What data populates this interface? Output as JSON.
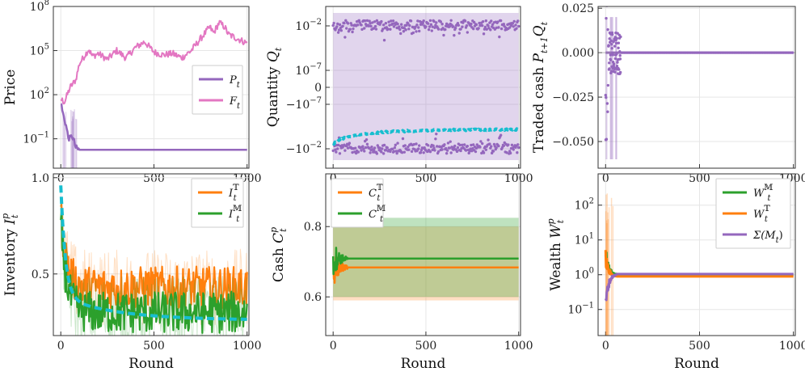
{
  "colors": {
    "purple": "#9467bd",
    "pink": "#e377c2",
    "orange": "#ff7f0e",
    "green": "#2ca02c",
    "cyan": "#17becf",
    "grid": "#e6e6e6",
    "frame": "#333333"
  },
  "chart_data": [
    {
      "id": "price",
      "type": "line",
      "ylabel": "Price",
      "yscale": "log",
      "ylim_log10": [
        -3,
        8
      ],
      "xlim": [
        -40,
        1010
      ],
      "xticks": [
        "0",
        "500",
        "1000"
      ],
      "yticks": [
        {
          "exp": 8,
          "label": "10",
          "sup": "8"
        },
        {
          "exp": 5,
          "label": "10",
          "sup": "5"
        },
        {
          "exp": 2,
          "label": "10",
          "sup": "2"
        },
        {
          "exp": -1,
          "label": "10",
          "sup": "−1"
        }
      ],
      "legend": {
        "placement": "right",
        "entries": [
          {
            "label": "P",
            "sub": "t",
            "color": "purple"
          },
          {
            "label": "F",
            "sub": "t",
            "color": "pink"
          }
        ]
      },
      "series": [
        {
          "name": "P_t",
          "color": "purple",
          "x": [
            0,
            10,
            20,
            30,
            40,
            50,
            60,
            70,
            80,
            90,
            100,
            1000
          ],
          "y_log10": [
            1.5,
            0.8,
            0.3,
            -0.2,
            -0.9,
            -1.0,
            -0.8,
            -1.1,
            -1.6,
            -1.7,
            -1.75,
            -1.75
          ]
        },
        {
          "name": "F_t",
          "color": "pink",
          "x": [
            0,
            20,
            50,
            80,
            100,
            150,
            170,
            200,
            250,
            300,
            350,
            400,
            450,
            500,
            550,
            600,
            650,
            700,
            750,
            800,
            820,
            850,
            880,
            900,
            950,
            1000
          ],
          "y_log10": [
            1.7,
            1.5,
            2.5,
            3.0,
            4.1,
            5.1,
            4.6,
            4.8,
            4.4,
            5.0,
            4.5,
            5.2,
            5.6,
            4.9,
            4.7,
            4.8,
            4.5,
            5.0,
            5.8,
            6.6,
            6.2,
            6.9,
            6.6,
            6.1,
            5.8,
            5.5
          ]
        }
      ]
    },
    {
      "id": "quantity",
      "type": "scatter",
      "ylabel": "Quantity",
      "ylabel_sym": "Q",
      "ylabel_sub": "t",
      "yscale": "symlog",
      "xlim": [
        -40,
        1010
      ],
      "xticks": [
        "0",
        "500",
        "1000"
      ],
      "yticks": [
        {
          "label": "10",
          "sup": "−2"
        },
        {
          "label": "10",
          "sup": "−7"
        },
        {
          "label": "0",
          "sup": ""
        },
        {
          "label": "−10",
          "sup": "−7"
        },
        {
          "label": "−10",
          "sup": "−2"
        }
      ],
      "series": [
        {
          "name": "positive",
          "color": "purple",
          "level": "10^-2"
        },
        {
          "name": "negative",
          "color": "purple",
          "level": "-10^-2"
        },
        {
          "name": "mean",
          "color": "cyan",
          "from": "-10^-2",
          "to": "-10^-2.5"
        }
      ]
    },
    {
      "id": "traded_cash",
      "type": "scatter",
      "ylabel": "Traded cash",
      "ylabel_sym": "P",
      "ylabel_sub": "t+1",
      "ylabel_sym2": "Q",
      "ylabel_sub2": "t",
      "ylim": [
        -0.065,
        0.026
      ],
      "xlim": [
        -40,
        1010
      ],
      "xticks": [
        "0",
        "500",
        "1000"
      ],
      "yticks": [
        "0.025",
        "0.000",
        "−0.025",
        "−0.050"
      ],
      "series": [
        {
          "name": "PQ",
          "color": "purple",
          "note": "scatter near x<80, ~0 afterwards"
        }
      ]
    },
    {
      "id": "inventory",
      "type": "line",
      "ylabel": "Inventory",
      "ylabel_sym": "I",
      "ylabel_sup": "p",
      "ylabel_sub": "t",
      "ylim": [
        0.18,
        1.02
      ],
      "xlim": [
        -40,
        1010
      ],
      "xticks": [
        "0",
        "500",
        "1000"
      ],
      "xlabel": "Round",
      "yticks": [
        "1.0",
        "0.5"
      ],
      "legend": {
        "placement": "top-right",
        "entries": [
          {
            "label": "I",
            "sub": "t",
            "sup": "𝕋",
            "color": "orange"
          },
          {
            "label": "I",
            "sub": "t",
            "sup": "𝕄",
            "color": "green"
          }
        ]
      },
      "series": [
        {
          "name": "I_t^T",
          "color": "orange",
          "start": 0.82,
          "level": 0.43
        },
        {
          "name": "I_t^M",
          "color": "green",
          "start": 0.78,
          "level": 0.3
        },
        {
          "name": "mean",
          "color": "cyan",
          "start": 0.84,
          "level": 0.26
        }
      ]
    },
    {
      "id": "cash",
      "type": "line",
      "ylabel": "Cash",
      "ylabel_sym": "C",
      "ylabel_sup": "p",
      "ylabel_sub": "t",
      "ylim": [
        0.49,
        0.95
      ],
      "xlim": [
        -40,
        1010
      ],
      "xticks": [
        "0",
        "500",
        "1000"
      ],
      "xlabel": "Round",
      "yticks": [
        "0.8",
        "0.6"
      ],
      "legend": {
        "placement": "top-left",
        "entries": [
          {
            "label": "C",
            "sub": "t",
            "sup": "𝕋",
            "color": "orange"
          },
          {
            "label": "C",
            "sub": "t",
            "sup": "𝕄",
            "color": "green"
          }
        ]
      },
      "series": [
        {
          "name": "C_t^T",
          "color": "orange",
          "level": 0.684,
          "band": [
            0.59,
            0.8
          ]
        },
        {
          "name": "C_t^M",
          "color": "green",
          "level": 0.709,
          "band": [
            0.6,
            0.825
          ]
        }
      ]
    },
    {
      "id": "wealth",
      "type": "line",
      "ylabel": "Wealth",
      "ylabel_sym": "W",
      "ylabel_sup": "p",
      "ylabel_sub": "t",
      "yscale": "log",
      "ylim_log10": [
        -1.75,
        2.9
      ],
      "xlim": [
        -40,
        1010
      ],
      "xticks": [
        "0",
        "500",
        "1000"
      ],
      "xlabel": "Round",
      "yticks": [
        {
          "exp": 2,
          "label": "10",
          "sup": "2"
        },
        {
          "exp": 1,
          "label": "10",
          "sup": "1"
        },
        {
          "exp": 0,
          "label": "10",
          "sup": "0"
        },
        {
          "exp": -1,
          "label": "10",
          "sup": "−1"
        }
      ],
      "legend": {
        "placement": "top-right",
        "entries": [
          {
            "label": "W",
            "sub": "t",
            "sup": "𝕄",
            "color": "green"
          },
          {
            "label": "W",
            "sub": "t",
            "sup": "𝕋",
            "color": "orange"
          },
          {
            "label": "Σ(M",
            "sub": "t",
            "tail": ")",
            "color": "purple"
          }
        ]
      },
      "series": [
        {
          "name": "W_t^M",
          "color": "green",
          "level_log10": 0.0
        },
        {
          "name": "W_t^T",
          "color": "orange",
          "level_log10": -0.05
        },
        {
          "name": "Sum(M_t)",
          "color": "purple",
          "level_log10": 0.02
        }
      ]
    }
  ]
}
